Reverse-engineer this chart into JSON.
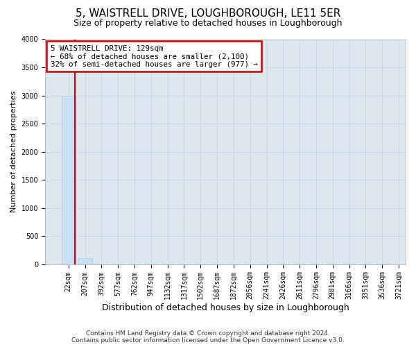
{
  "title": "5, WAISTRELL DRIVE, LOUGHBOROUGH, LE11 5ER",
  "subtitle": "Size of property relative to detached houses in Loughborough",
  "xlabel": "Distribution of detached houses by size in Loughborough",
  "ylabel": "Number of detached properties",
  "footer_line1": "Contains HM Land Registry data © Crown copyright and database right 2024.",
  "footer_line2": "Contains public sector information licensed under the Open Government Licence v3.0.",
  "categories": [
    "22sqm",
    "207sqm",
    "392sqm",
    "577sqm",
    "762sqm",
    "947sqm",
    "1132sqm",
    "1317sqm",
    "1502sqm",
    "1687sqm",
    "1872sqm",
    "2056sqm",
    "2241sqm",
    "2426sqm",
    "2611sqm",
    "2796sqm",
    "2981sqm",
    "3166sqm",
    "3351sqm",
    "3536sqm",
    "3721sqm"
  ],
  "bar_values": [
    3000,
    100,
    2,
    2,
    2,
    2,
    2,
    2,
    2,
    2,
    2,
    2,
    2,
    2,
    2,
    2,
    2,
    2,
    2,
    2
  ],
  "bar_color": "#cce0f5",
  "bar_edgecolor": "#aac8e8",
  "ylim": [
    0,
    4000
  ],
  "yticks": [
    0,
    500,
    1000,
    1500,
    2000,
    2500,
    3000,
    3500,
    4000
  ],
  "annotation_line1": "5 WAISTRELL DRIVE: 129sqm",
  "annotation_line2": "← 68% of detached houses are smaller (2,100)",
  "annotation_line3": "32% of semi-detached houses are larger (977) →",
  "annotation_box_facecolor": "#ffffff",
  "annotation_box_edgecolor": "#cc0000",
  "red_line_color": "#cc0000",
  "red_line_x": 0.38,
  "grid_color": "#c8d8e8",
  "background_color": "#dde8f0",
  "title_fontsize": 11,
  "subtitle_fontsize": 9,
  "tick_fontsize": 7,
  "ylabel_fontsize": 8,
  "xlabel_fontsize": 9,
  "footer_fontsize": 6.5
}
